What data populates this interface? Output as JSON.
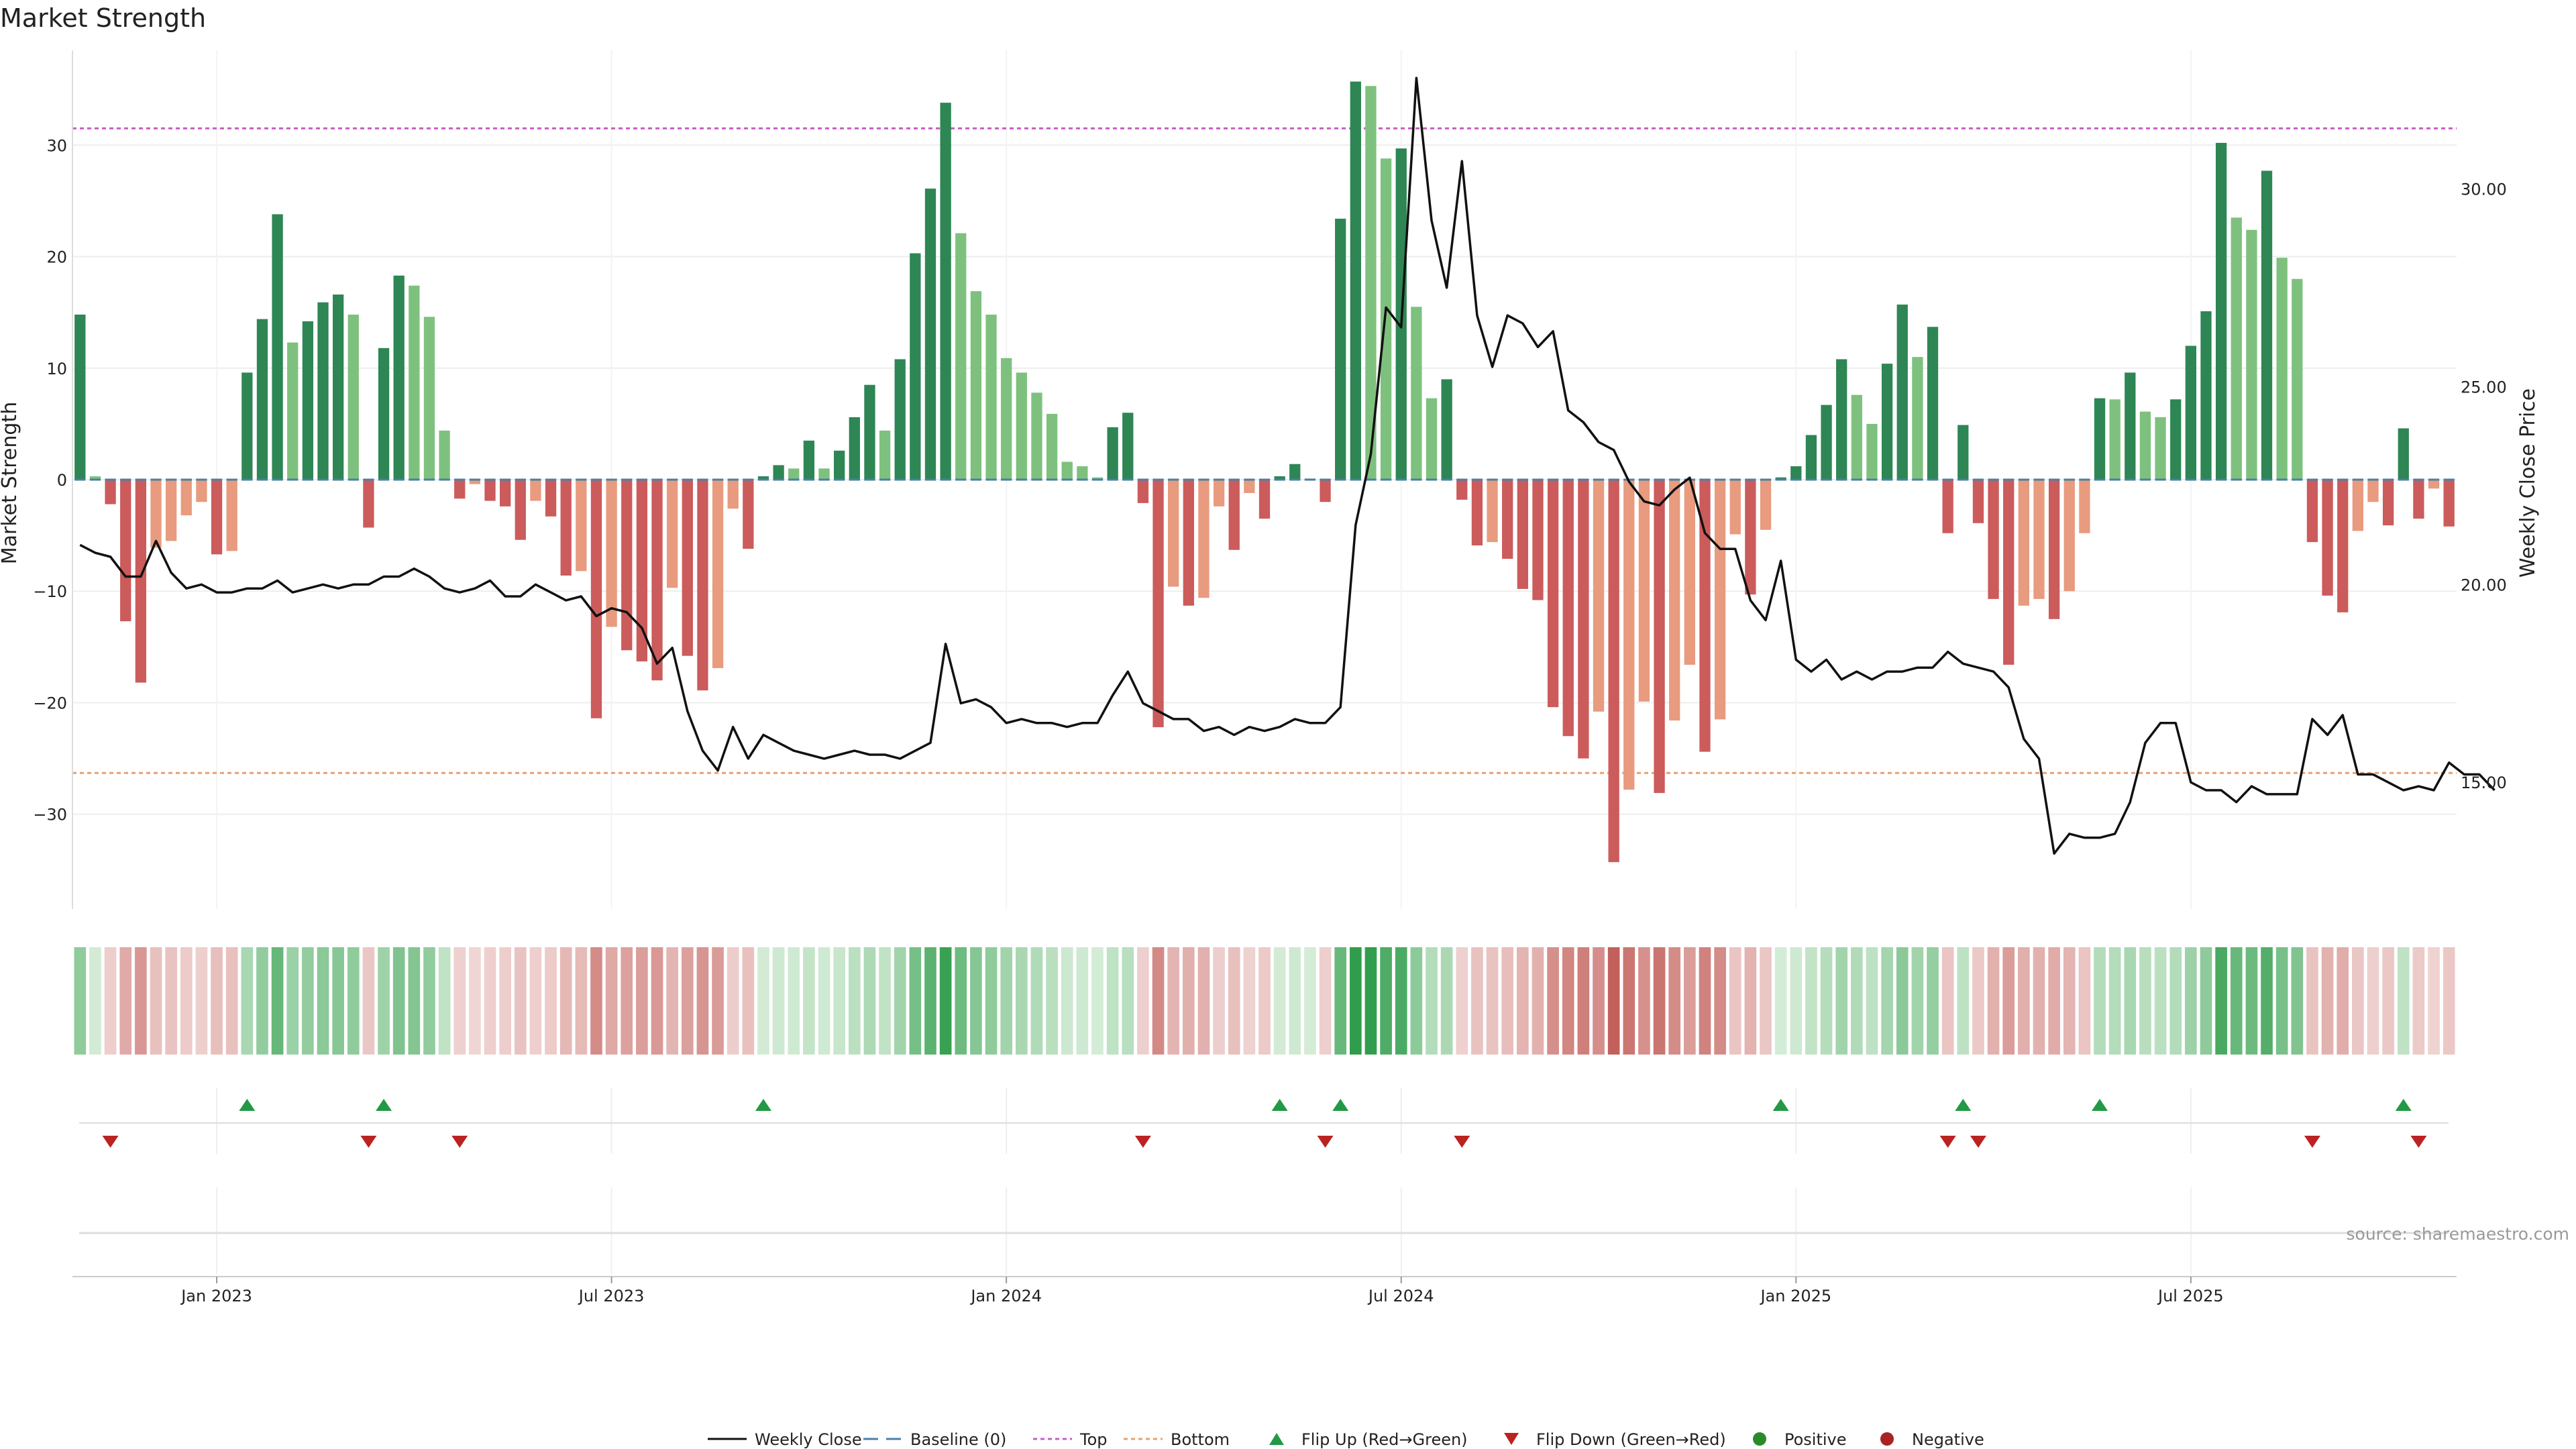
{
  "chart_data": {
    "type": "bar",
    "title": "Market Strength",
    "ylabel": "Market Strength",
    "y2label": "Weekly Close Price",
    "ylim": [
      -38.5,
      38.5
    ],
    "y2lim": [
      11.8,
      33.5
    ],
    "yticks": [
      30,
      20,
      10,
      0,
      -10,
      -20,
      -30
    ],
    "yticklabels": [
      "30",
      "20",
      "10",
      "0",
      "−10",
      "−20",
      "−30"
    ],
    "y2ticks": [
      30,
      25,
      20,
      15
    ],
    "y2ticklabels": [
      "30.00",
      "25.00",
      "20.00",
      "15.00"
    ],
    "xticks": [
      {
        "label": "Jan 2023",
        "week": 9
      },
      {
        "label": "Jul 2023",
        "week": 35
      },
      {
        "label": "Jan 2024",
        "week": 61
      },
      {
        "label": "Jul 2024",
        "week": 87
      },
      {
        "label": "Jan 2025",
        "week": 113
      },
      {
        "label": "Jul 2025",
        "week": 139
      }
    ],
    "top_line": 31.5,
    "bottom_line": -26.3,
    "strength": [
      14.8,
      0.3,
      -2.2,
      -12.7,
      -18.2,
      -6.1,
      -5.5,
      -3.2,
      -2.0,
      -6.7,
      -6.4,
      9.6,
      14.4,
      23.8,
      12.3,
      14.2,
      15.9,
      16.6,
      14.8,
      -4.3,
      11.8,
      18.3,
      17.4,
      14.6,
      4.4,
      -1.7,
      -0.4,
      -1.9,
      -2.4,
      -5.4,
      -1.9,
      -3.3,
      -8.6,
      -8.2,
      -21.4,
      -13.2,
      -15.3,
      -16.3,
      -18.0,
      -9.7,
      -15.8,
      -18.9,
      -16.9,
      -2.6,
      -6.2,
      0.3,
      1.3,
      1.0,
      3.5,
      1.0,
      2.6,
      5.6,
      8.5,
      4.4,
      10.8,
      20.3,
      26.1,
      33.8,
      22.1,
      16.9,
      14.8,
      10.9,
      9.6,
      7.8,
      5.9,
      1.6,
      1.2,
      0.2,
      4.7,
      6.0,
      -2.1,
      -22.2,
      -9.6,
      -11.3,
      -10.6,
      -2.4,
      -6.3,
      -1.2,
      -3.5,
      0.3,
      1.4,
      0.1,
      -2.0,
      23.4,
      35.7,
      35.3,
      28.8,
      29.7,
      15.5,
      7.3,
      9.0,
      -1.8,
      -5.9,
      -5.6,
      -7.1,
      -9.8,
      -10.8,
      -20.4,
      -23.0,
      -25.0,
      -20.8,
      -34.3,
      -27.8,
      -19.9,
      -28.1,
      -21.6,
      -16.6,
      -24.4,
      -21.5,
      -4.9,
      -10.3,
      -4.5,
      0.2,
      1.2,
      4.0,
      6.7,
      10.8,
      7.6,
      5.0,
      10.4,
      15.7,
      11.0,
      13.7,
      -4.8,
      4.9,
      -3.9,
      -10.7,
      -16.6,
      -11.3,
      -10.7,
      -12.5,
      -10.0,
      -4.8,
      7.3,
      7.2,
      9.6,
      6.1,
      5.6,
      7.2,
      12.0,
      15.1,
      30.2,
      23.5,
      22.4,
      27.7,
      19.9,
      18.0,
      -5.6,
      -10.4,
      -11.9,
      -4.6,
      -2.0,
      -4.1,
      4.6,
      -3.5,
      -0.8,
      -4.2
    ],
    "weekly_close": [
      21.0,
      20.8,
      20.7,
      20.2,
      20.2,
      21.1,
      20.3,
      19.9,
      20.0,
      19.8,
      19.8,
      19.9,
      19.9,
      20.1,
      19.8,
      19.9,
      20.0,
      19.9,
      20.0,
      20.0,
      20.2,
      20.2,
      20.4,
      20.2,
      19.9,
      19.8,
      19.9,
      20.1,
      19.7,
      19.7,
      20.0,
      19.8,
      19.6,
      19.7,
      19.2,
      19.4,
      19.3,
      18.9,
      18.0,
      18.4,
      16.8,
      15.8,
      15.3,
      16.4,
      15.6,
      16.2,
      16.0,
      15.8,
      15.7,
      15.6,
      15.7,
      15.8,
      15.7,
      15.7,
      15.6,
      15.8,
      16.0,
      18.5,
      17.0,
      17.1,
      16.9,
      16.5,
      16.6,
      16.5,
      16.5,
      16.4,
      16.5,
      16.5,
      17.2,
      17.8,
      17.0,
      16.8,
      16.6,
      16.6,
      16.3,
      16.4,
      16.2,
      16.4,
      16.3,
      16.4,
      16.6,
      16.5,
      16.5,
      16.9,
      21.5,
      23.3,
      27.0,
      26.5,
      32.8,
      29.2,
      27.5,
      30.7,
      26.8,
      25.5,
      26.8,
      26.6,
      26.0,
      26.4,
      24.4,
      24.1,
      23.6,
      23.4,
      22.6,
      22.1,
      22.0,
      22.4,
      22.7,
      21.3,
      20.9,
      20.9,
      19.6,
      19.1,
      20.6,
      18.1,
      17.8,
      18.1,
      17.6,
      17.8,
      17.6,
      17.8,
      17.8,
      17.9,
      17.9,
      18.3,
      18.0,
      17.9,
      17.8,
      17.4,
      16.1,
      15.6,
      13.2,
      13.7,
      13.6,
      13.6,
      13.7,
      14.5,
      16.0,
      16.5,
      16.5,
      15.0,
      14.8,
      14.8,
      14.5,
      14.9,
      14.7,
      14.7,
      14.7,
      16.6,
      16.2,
      16.7,
      15.2,
      15.2,
      15.0,
      14.8,
      14.9,
      14.8,
      15.5,
      15.2,
      15.2,
      14.8
    ],
    "flips_up": [
      11,
      20,
      45,
      79,
      83,
      112,
      124,
      133,
      153
    ],
    "flips_down": [
      2,
      19,
      25,
      70,
      82,
      91,
      123,
      125,
      147,
      154
    ],
    "legend": [
      "Weekly Close",
      "Baseline (0)",
      "Top",
      "Bottom",
      "Flip Up (Red→Green)",
      "Flip Down (Green→Red)",
      "Positive",
      "Negative"
    ],
    "legend_placement": "bottom-center",
    "source": "source: sharemaestro.com"
  },
  "colors": {
    "pos_strong": "#2e8654",
    "pos_weak": "#7ec17e",
    "neg_strong": "#cc5b5b",
    "neg_weak": "#e89b7e",
    "close_line": "#111111",
    "baseline": "#4a7fa8",
    "top_line": "#c75ec7",
    "bottom_line": "#e8a070",
    "flip_up": "#229944",
    "flip_down": "#bb2222",
    "positive_dot": "#2a8a2a",
    "negative_dot": "#aa2222"
  }
}
